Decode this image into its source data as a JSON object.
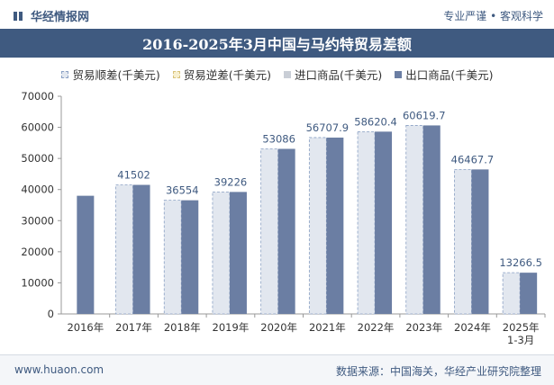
{
  "header": {
    "brand_name": "华经情报网",
    "tagline": "专业严谨 • 客观科学"
  },
  "chart_data": {
    "type": "bar",
    "title": "2016-2025年3月中国与马约特贸易差额",
    "categories": [
      "2016年",
      "2017年",
      "2018年",
      "2019年",
      "2020年",
      "2021年",
      "2022年",
      "2023年",
      "2024年",
      "2025年\n1-3月"
    ],
    "series": [
      {
        "name": "贸易顺差(千美元)",
        "values": [
          null,
          41502,
          36554,
          39226,
          53086,
          56707.9,
          58620.4,
          60619.7,
          46467.7,
          13266.5
        ],
        "color": "#e2e7ef",
        "style": "dashed-outline"
      },
      {
        "name": "贸易逆差(千美元)",
        "values": [
          null,
          null,
          null,
          null,
          null,
          null,
          null,
          null,
          null,
          null
        ],
        "color": "#f2e6b8"
      },
      {
        "name": "进口商品(千美元)",
        "values": [
          null,
          null,
          null,
          null,
          null,
          null,
          null,
          null,
          null,
          null
        ],
        "color": "#c9ced6"
      },
      {
        "name": "出口商品(千美元)",
        "values": [
          38000,
          41502,
          36554,
          39226,
          53086,
          56707.9,
          58620.4,
          60619.7,
          46467.7,
          13266.5
        ],
        "color": "#6b7ea3"
      }
    ],
    "data_labels": [
      "",
      "41502",
      "36554",
      "39226",
      "53086",
      "56707.9",
      "58620.4",
      "60619.7",
      "46467.7",
      "13266.5"
    ],
    "yticks": [
      "0",
      "10000",
      "20000",
      "30000",
      "40000",
      "50000",
      "60000",
      "70000"
    ],
    "ylim": [
      0,
      70000
    ],
    "legend_position": "top"
  },
  "footer": {
    "website": "www.huaon.com",
    "source": "数据来源：中国海关，华经产业研究院整理"
  },
  "colors": {
    "brand": "#3f5a80",
    "bar": "#6b7ea3",
    "surplus_bar": "#e2e7ef"
  }
}
